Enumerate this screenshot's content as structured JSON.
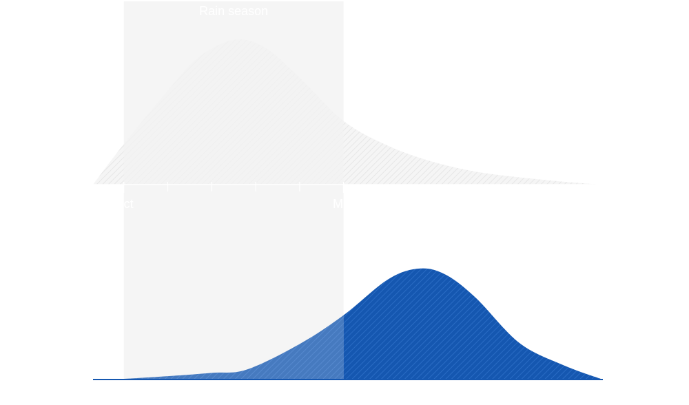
{
  "chart_data": {
    "type": "area",
    "band": {
      "label": "Rain season",
      "x_range": [
        1,
        6
      ]
    },
    "x_tick_labels": [
      {
        "x": 1,
        "label": "Oct"
      },
      {
        "x": 6,
        "label": "Mar"
      }
    ],
    "minor_ticks_x": [
      2,
      3,
      4,
      5
    ],
    "xlim": [
      0.3,
      11.9
    ],
    "panels": [
      {
        "name": "",
        "color": "#ffffff",
        "points": [
          [
            0.3,
            0
          ],
          [
            1,
            0.28
          ],
          [
            2,
            0.65
          ],
          [
            2.7,
            0.88
          ],
          [
            3.5,
            1.0
          ],
          [
            4.2,
            0.95
          ],
          [
            5,
            0.74
          ],
          [
            6,
            0.44
          ],
          [
            7,
            0.27
          ],
          [
            8,
            0.16
          ],
          [
            9,
            0.09
          ],
          [
            10,
            0.05
          ],
          [
            11,
            0.02
          ],
          [
            11.5,
            0.008
          ],
          [
            11.9,
            0
          ]
        ]
      },
      {
        "name": "",
        "color": "#1557b0",
        "points": [
          [
            0.3,
            0
          ],
          [
            1,
            0.006
          ],
          [
            2,
            0.03
          ],
          [
            3,
            0.06
          ],
          [
            3.8,
            0.09
          ],
          [
            5,
            0.32
          ],
          [
            6,
            0.58
          ],
          [
            7,
            0.9
          ],
          [
            7.7,
            1.0
          ],
          [
            8.3,
            0.95
          ],
          [
            9,
            0.74
          ],
          [
            10,
            0.33
          ],
          [
            11,
            0.13
          ],
          [
            11.9,
            0
          ]
        ]
      }
    ]
  }
}
